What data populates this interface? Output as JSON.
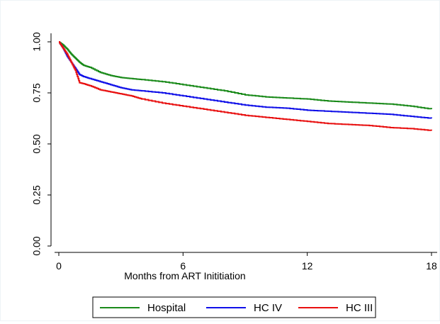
{
  "colors": {
    "hospital": "#1a8a1a",
    "hc_iv": "#1010e8",
    "hc_iii": "#e81010",
    "axis": "#000000",
    "frame": "#eef3f6"
  },
  "chart_data": {
    "type": "line",
    "title": "",
    "xlabel": "Months from ART Inititiation",
    "ylabel": "",
    "xlim": [
      0,
      18
    ],
    "ylim": [
      0,
      1
    ],
    "xticks": [
      0,
      6,
      12,
      18
    ],
    "xtick_labels": [
      "0",
      "6",
      "12",
      "18"
    ],
    "yticks": [
      0,
      0.25,
      0.5,
      0.75,
      1
    ],
    "ytick_labels": [
      "0.00",
      "0.25",
      "0.50",
      "0.75",
      "1.00"
    ],
    "grid": false,
    "legend_position": "bottom",
    "series": [
      {
        "name": "Hospital",
        "color_key": "hospital",
        "x": [
          0,
          0.2,
          0.4,
          0.6,
          0.8,
          1.0,
          1.2,
          1.5,
          2.0,
          2.5,
          3.0,
          3.5,
          4.0,
          5.0,
          6.0,
          7.0,
          8.0,
          9.0,
          10.0,
          11.0,
          12.0,
          13.0,
          14.0,
          15.0,
          16.0,
          17.0,
          18.0
        ],
        "y": [
          1.0,
          0.985,
          0.965,
          0.94,
          0.92,
          0.9,
          0.885,
          0.875,
          0.85,
          0.835,
          0.825,
          0.82,
          0.815,
          0.805,
          0.79,
          0.775,
          0.76,
          0.74,
          0.73,
          0.725,
          0.72,
          0.71,
          0.705,
          0.7,
          0.695,
          0.685,
          0.67
        ]
      },
      {
        "name": "HC IV",
        "color_key": "hc_iv",
        "x": [
          0,
          0.2,
          0.4,
          0.6,
          0.8,
          1.0,
          1.2,
          1.5,
          2.0,
          2.5,
          3.0,
          3.5,
          4.0,
          5.0,
          6.0,
          7.0,
          8.0,
          9.0,
          10.0,
          11.0,
          12.0,
          13.0,
          14.0,
          15.0,
          16.0,
          17.0,
          18.0
        ],
        "y": [
          1.0,
          0.97,
          0.93,
          0.9,
          0.87,
          0.84,
          0.83,
          0.82,
          0.805,
          0.79,
          0.775,
          0.765,
          0.76,
          0.75,
          0.735,
          0.72,
          0.705,
          0.69,
          0.68,
          0.675,
          0.665,
          0.66,
          0.655,
          0.65,
          0.645,
          0.635,
          0.625
        ]
      },
      {
        "name": "HC III",
        "color_key": "hc_iii",
        "x": [
          0,
          0.2,
          0.4,
          0.6,
          0.8,
          1.0,
          1.2,
          1.5,
          2.0,
          2.5,
          3.0,
          3.5,
          4.0,
          5.0,
          6.0,
          7.0,
          8.0,
          9.0,
          10.0,
          11.0,
          12.0,
          13.0,
          14.0,
          15.0,
          16.0,
          17.0,
          18.0
        ],
        "y": [
          1.0,
          0.97,
          0.94,
          0.9,
          0.86,
          0.8,
          0.795,
          0.785,
          0.765,
          0.755,
          0.745,
          0.735,
          0.72,
          0.7,
          0.685,
          0.67,
          0.655,
          0.64,
          0.63,
          0.62,
          0.61,
          0.6,
          0.595,
          0.59,
          0.58,
          0.575,
          0.565
        ]
      }
    ]
  }
}
